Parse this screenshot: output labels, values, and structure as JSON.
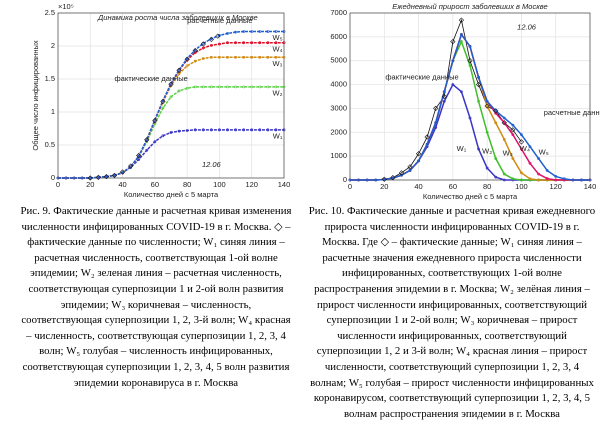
{
  "chart_data": [
    {
      "type": "line",
      "title": "Динамика роста числа заболевших в Москве",
      "xlabel": "Количество дней с 5 марта",
      "ylabel": "Общее число инфицированных",
      "y_multiplier": "×10⁵",
      "xlim": [
        0,
        140
      ],
      "xticks": [
        0,
        20,
        40,
        60,
        80,
        100,
        120,
        140
      ],
      "ylim": [
        0,
        2.5
      ],
      "yticks": [
        0,
        0.5,
        1,
        1.5,
        2,
        2.5
      ],
      "grid": true,
      "x": [
        0,
        5,
        10,
        15,
        20,
        25,
        30,
        35,
        40,
        45,
        50,
        55,
        60,
        65,
        70,
        75,
        80,
        85,
        90,
        95,
        100,
        105,
        110,
        115,
        120,
        125,
        130,
        135,
        140
      ],
      "series": [
        {
          "name": "W₁",
          "color": "#3a35c8",
          "values": [
            0,
            0,
            0,
            0,
            0,
            0.01,
            0.02,
            0.04,
            0.08,
            0.16,
            0.28,
            0.42,
            0.55,
            0.64,
            0.69,
            0.71,
            0.72,
            0.73,
            0.73,
            0.73,
            0.73,
            0.73,
            0.73,
            0.73,
            0.73,
            0.73,
            0.73,
            0.73,
            0.73
          ]
        },
        {
          "name": "W₂",
          "color": "#5fd14a",
          "values": [
            0,
            0,
            0,
            0,
            0,
            0.01,
            0.02,
            0.04,
            0.08,
            0.17,
            0.32,
            0.55,
            0.82,
            1.06,
            1.23,
            1.32,
            1.36,
            1.38,
            1.38,
            1.38,
            1.38,
            1.38,
            1.38,
            1.38,
            1.38,
            1.38,
            1.38,
            1.38,
            1.38
          ]
        },
        {
          "name": "W₃",
          "color": "#d08a10",
          "values": [
            0,
            0,
            0,
            0,
            0,
            0.01,
            0.02,
            0.04,
            0.08,
            0.17,
            0.33,
            0.57,
            0.87,
            1.15,
            1.4,
            1.58,
            1.7,
            1.77,
            1.81,
            1.83,
            1.83,
            1.83,
            1.83,
            1.83,
            1.83,
            1.83,
            1.83,
            1.83,
            1.83
          ]
        },
        {
          "name": "W₄",
          "color": "#e0102a",
          "values": [
            0,
            0,
            0,
            0,
            0,
            0.01,
            0.02,
            0.04,
            0.08,
            0.17,
            0.33,
            0.58,
            0.88,
            1.17,
            1.43,
            1.63,
            1.79,
            1.9,
            1.97,
            2.01,
            2.03,
            2.05,
            2.05,
            2.05,
            2.05,
            2.05,
            2.05,
            2.05,
            2.05
          ]
        },
        {
          "name": "W₅",
          "color": "#1f5fd0",
          "values": [
            0,
            0,
            0,
            0,
            0,
            0.01,
            0.02,
            0.04,
            0.08,
            0.17,
            0.33,
            0.58,
            0.88,
            1.17,
            1.43,
            1.64,
            1.81,
            1.94,
            2.04,
            2.11,
            2.16,
            2.19,
            2.21,
            2.22,
            2.22,
            2.22,
            2.22,
            2.22,
            2.22
          ]
        }
      ],
      "actual": {
        "color": "#111111",
        "x": [
          20,
          25,
          30,
          35,
          40,
          45,
          50,
          55,
          60,
          65,
          70,
          75,
          80,
          85,
          90,
          95,
          99
        ],
        "values": [
          0,
          0.01,
          0.02,
          0.04,
          0.09,
          0.18,
          0.34,
          0.58,
          0.87,
          1.16,
          1.42,
          1.63,
          1.8,
          1.93,
          2.03,
          2.1,
          2.15
        ]
      },
      "annotations": [
        "расчетные данные",
        "фактические данные",
        "12.06"
      ]
    },
    {
      "type": "line",
      "title": "Ежедневный прирост заболевших в Москве",
      "xlabel": "Количество дней с 5 марта",
      "xlim": [
        0,
        140
      ],
      "xticks": [
        0,
        20,
        40,
        60,
        80,
        100,
        120,
        140
      ],
      "ylim": [
        0,
        7000
      ],
      "yticks": [
        0,
        1000,
        2000,
        3000,
        4000,
        5000,
        6000,
        7000
      ],
      "grid": true,
      "x": [
        0,
        5,
        10,
        15,
        20,
        25,
        30,
        35,
        40,
        45,
        50,
        55,
        60,
        65,
        70,
        75,
        80,
        85,
        90,
        95,
        100,
        105,
        110,
        115,
        120,
        125,
        130,
        135,
        140
      ],
      "series": [
        {
          "name": "W₁",
          "color": "#3a35c8",
          "values": [
            0,
            0,
            0,
            0,
            20,
            80,
            200,
            400,
            800,
            1400,
            2200,
            3300,
            4000,
            3700,
            2600,
            1300,
            500,
            120,
            0,
            0,
            0,
            0,
            0,
            0,
            0,
            0,
            0,
            0,
            0
          ]
        },
        {
          "name": "W₂",
          "color": "#3fbf2a",
          "values": [
            0,
            0,
            0,
            0,
            20,
            80,
            200,
            400,
            800,
            1500,
            2400,
            3700,
            5000,
            5800,
            4800,
            3300,
            2000,
            900,
            250,
            50,
            0,
            0,
            0,
            0,
            0,
            0,
            0,
            0,
            0
          ]
        },
        {
          "name": "W₃",
          "color": "#d08a10",
          "values": [
            0,
            0,
            0,
            0,
            20,
            80,
            200,
            400,
            800,
            1500,
            2400,
            3700,
            5000,
            6100,
            5600,
            4300,
            3100,
            2400,
            1700,
            900,
            300,
            50,
            0,
            0,
            0,
            0,
            0,
            0,
            0
          ]
        },
        {
          "name": "W₄",
          "color": "#e0106a",
          "values": [
            0,
            0,
            0,
            0,
            20,
            80,
            200,
            400,
            800,
            1500,
            2400,
            3700,
            5000,
            6100,
            5600,
            4300,
            3300,
            2800,
            2400,
            1900,
            1300,
            700,
            250,
            60,
            0,
            0,
            0,
            0,
            0
          ]
        },
        {
          "name": "W₅",
          "color": "#1f5fd0",
          "values": [
            0,
            0,
            0,
            0,
            20,
            80,
            200,
            400,
            800,
            1500,
            2400,
            3700,
            5000,
            6100,
            5600,
            4300,
            3300,
            2900,
            2600,
            2300,
            1900,
            1400,
            900,
            400,
            150,
            50,
            0,
            0,
            0
          ]
        }
      ],
      "actual": {
        "color": "#111111",
        "x": [
          20,
          25,
          30,
          35,
          40,
          45,
          50,
          55,
          60,
          65,
          70,
          75,
          80,
          85,
          90,
          95,
          100
        ],
        "values": [
          30,
          100,
          300,
          550,
          1100,
          1800,
          3000,
          3500,
          5800,
          6700,
          5000,
          4000,
          3100,
          2900,
          2400,
          2100,
          1600
        ]
      },
      "annotations": [
        "расчетные данные",
        "фактические данные",
        "12.06"
      ]
    }
  ],
  "captions": [
    "Рис. 9. Фактические данные и расчетная кривая изменения численности инфицированных COVID-19 в г. Москва. ◇ – фактические данные по численности; W₁ синяя линия – расчетная численность, соответствующая 1-ой волне эпидемии; W₂ зеленая линия – расчетная численность, соответствующая суперпозиции 1 и 2-ой волн развития эпидемии; W₃ коричневая – численность, соответствующая суперпозиции 1, 2, 3-й волн; W₄ красная – численность, соответствующая суперпозиции 1, 2, 3, 4 волн; W₅ голубая – численность инфицированных, соответствующая суперпозиции 1, 2, 3, 4, 5 волн развития эпидемии коронавируса в г. Москва",
    "Рис. 10. Фактические данные и расчетная кривая ежедневного прироста численности инфицированных COVID-19 в г. Москва. Где ◇ – фактические данные; W₁ синяя линия – расчетные значения ежедневного прироста численности инфицированных, соответствующих 1-ой волне распространения эпидемии в г. Москва; W₂ зелёная линия – прирост численности инфицированных, соответствующий суперпозиции 1 и 2-ой волн; W₃ коричневая – прирост численности инфицированных, соответствующий суперпозиции 1, 2 и 3-й волн; W₄ красная линия – прирост численности, соответствующий суперпозиции 1, 2, 3, 4 волнам; W₅ голубая – прирост численности инфицированных коронавирусом, соответствующий суперпозиции 1, 2, 3, 4, 5 волнам распространения эпидемии в г. Москва"
  ]
}
